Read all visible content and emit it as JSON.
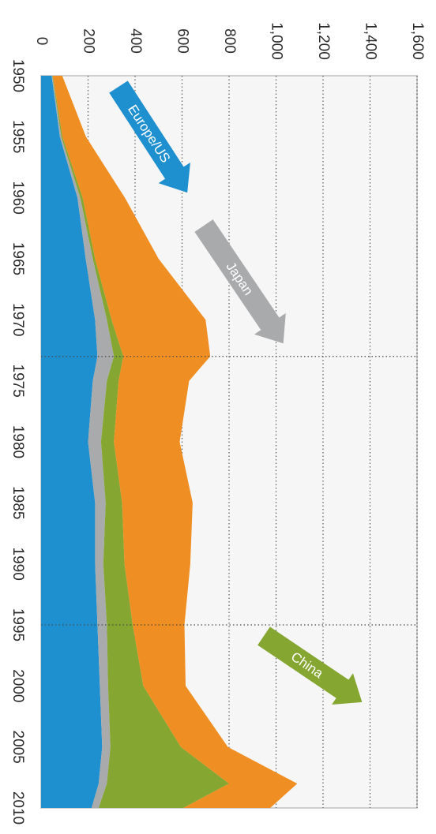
{
  "chart_data": {
    "type": "area",
    "stacked": true,
    "orientation": "rotated-90-clockwise",
    "x": [
      1950,
      1955,
      1960,
      1965,
      1970,
      1973,
      1975,
      1980,
      1985,
      1990,
      1995,
      2000,
      2005,
      2008,
      2010
    ],
    "xlim": [
      1950,
      2010
    ],
    "x_ticks": [
      "1950",
      "1955",
      "1960",
      "1965",
      "1970",
      "1975",
      "1980",
      "1985",
      "1990",
      "1995",
      "2000",
      "2005",
      "2010"
    ],
    "ylim": [
      0,
      1600
    ],
    "y_ticks": [
      "0",
      "200",
      "400",
      "600",
      "800",
      "1,000",
      "1,200",
      "1,400",
      "1,600"
    ],
    "grid": "dotted",
    "series": [
      {
        "name": "Europe/US",
        "color": "#1e8fcf",
        "values": [
          45,
          80,
          155,
          190,
          230,
          240,
          220,
          200,
          230,
          230,
          240,
          250,
          260,
          245,
          215
        ]
      },
      {
        "name": "Japan",
        "color": "#a9aaac",
        "values": [
          3,
          6,
          12,
          30,
          50,
          70,
          60,
          55,
          45,
          35,
          40,
          35,
          35,
          35,
          30
        ]
      },
      {
        "name": "China",
        "color": "#86a632",
        "values": [
          2,
          5,
          10,
          10,
          20,
          40,
          50,
          55,
          70,
          90,
          110,
          150,
          300,
          520,
          360
        ]
      },
      {
        "name": "",
        "color": "#ef8e22",
        "values": [
          40,
          100,
          180,
          270,
          400,
          370,
          300,
          280,
          300,
          280,
          220,
          180,
          200,
          290,
          370
        ]
      }
    ],
    "annotations": [
      {
        "text": "Europe/US",
        "color": "#1e8fcf"
      },
      {
        "text": "Japan",
        "color": "#a9aaac"
      },
      {
        "text": "China",
        "color": "#86a632"
      }
    ]
  }
}
